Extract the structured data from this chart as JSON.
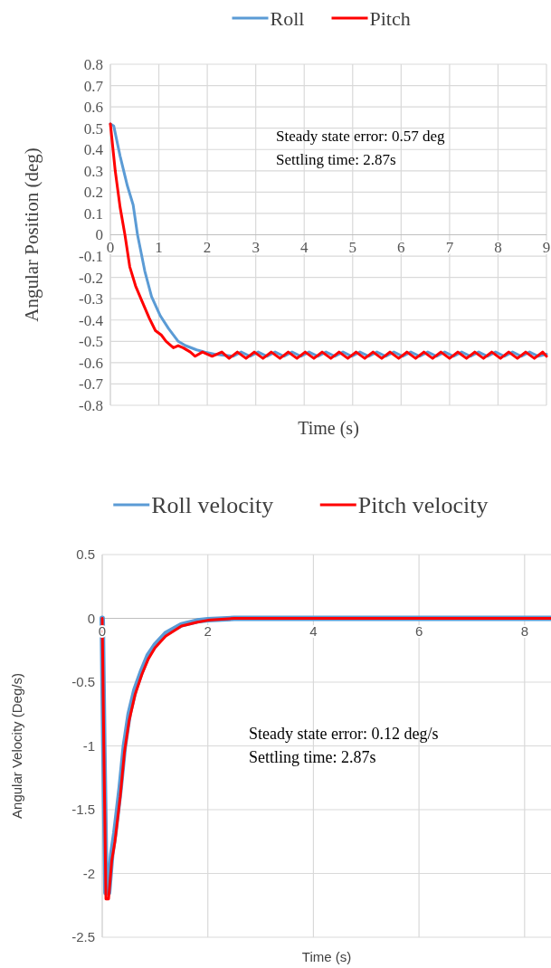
{
  "chart_data": [
    {
      "type": "line",
      "xlabel": "Time (s)",
      "ylabel": "Angular Position (deg)",
      "xlim": [
        0,
        9
      ],
      "ylim": [
        -0.8,
        0.8
      ],
      "xticks": [
        0,
        1,
        2,
        3,
        4,
        5,
        6,
        7,
        8,
        9
      ],
      "yticks": [
        {
          "value": -0.8,
          "label": "-0.8"
        },
        {
          "value": -0.7,
          "label": "-0.7"
        },
        {
          "value": -0.6,
          "label": "-0.6"
        },
        {
          "value": -0.5,
          "label": "-0.5"
        },
        {
          "value": -0.4,
          "label": "-0.4"
        },
        {
          "value": -0.3,
          "label": "-0.3"
        },
        {
          "value": -0.2,
          "label": "-0.2"
        },
        {
          "value": -0.1,
          "label": "-0.1"
        },
        0,
        {
          "value": 0.1,
          "label": "0.1"
        },
        {
          "value": 0.2,
          "label": "0.2"
        },
        {
          "value": 0.3,
          "label": "0.3"
        },
        {
          "value": 0.4,
          "label": "0.4"
        },
        {
          "value": 0.5,
          "label": "0.5"
        },
        {
          "value": 0.6,
          "label": "0.6"
        },
        {
          "value": 0.7,
          "label": "0.7"
        },
        {
          "value": 0.8,
          "label": "0.8"
        }
      ],
      "grid": true,
      "legend": "top",
      "annotations": [
        "Steady state error: 0.57 deg",
        "Settling time: 2.87s"
      ],
      "series": [
        {
          "name": "Roll",
          "color": "#5b9bd5",
          "x": [
            0,
            0.07,
            0.2,
            0.35,
            0.47,
            0.56,
            0.71,
            0.85,
            1.03,
            1.2,
            1.4,
            1.55,
            1.78,
            1.95,
            2.15,
            2.53,
            2.7,
            2.88,
            3.05,
            3.23,
            3.4,
            3.58,
            3.75,
            3.93,
            4.1,
            4.28,
            4.45,
            4.63,
            4.8,
            4.98,
            5.15,
            5.33,
            5.5,
            5.68,
            5.85,
            6.03,
            6.2,
            6.38,
            6.55,
            6.73,
            6.9,
            7.08,
            7.25,
            7.43,
            7.6,
            7.78,
            7.95,
            8.13,
            8.3,
            8.48,
            8.65,
            8.83,
            9
          ],
          "values": [
            0.52,
            0.51,
            0.37,
            0.23,
            0.14,
            0,
            -0.17,
            -0.29,
            -0.38,
            -0.44,
            -0.5,
            -0.52,
            -0.54,
            -0.55,
            -0.56,
            -0.57,
            -0.55,
            -0.57,
            -0.55,
            -0.57,
            -0.55,
            -0.57,
            -0.55,
            -0.57,
            -0.55,
            -0.57,
            -0.55,
            -0.57,
            -0.55,
            -0.57,
            -0.55,
            -0.57,
            -0.55,
            -0.57,
            -0.55,
            -0.57,
            -0.55,
            -0.57,
            -0.55,
            -0.57,
            -0.55,
            -0.57,
            -0.55,
            -0.57,
            -0.55,
            -0.57,
            -0.55,
            -0.57,
            -0.55,
            -0.57,
            -0.55,
            -0.57,
            -0.56
          ]
        },
        {
          "name": "Pitch",
          "color": "#ff0000",
          "x": [
            0,
            0.1,
            0.2,
            0.3,
            0.4,
            0.52,
            0.65,
            0.8,
            0.93,
            1.05,
            1.15,
            1.3,
            1.4,
            1.5,
            1.65,
            1.75,
            1.9,
            2.1,
            2.3,
            2.45,
            2.62,
            2.8,
            2.97,
            3.15,
            3.32,
            3.5,
            3.67,
            3.85,
            4.02,
            4.2,
            4.37,
            4.55,
            4.72,
            4.9,
            5.07,
            5.25,
            5.42,
            5.6,
            5.77,
            5.95,
            6.12,
            6.3,
            6.47,
            6.65,
            6.82,
            7,
            7.17,
            7.35,
            7.52,
            7.7,
            7.87,
            8.05,
            8.22,
            8.4,
            8.57,
            8.75,
            8.92,
            9
          ],
          "values": [
            0.52,
            0.3,
            0.13,
            0,
            -0.15,
            -0.24,
            -0.31,
            -0.39,
            -0.45,
            -0.47,
            -0.5,
            -0.53,
            -0.52,
            -0.53,
            -0.55,
            -0.57,
            -0.55,
            -0.57,
            -0.55,
            -0.58,
            -0.55,
            -0.58,
            -0.55,
            -0.58,
            -0.55,
            -0.58,
            -0.55,
            -0.58,
            -0.55,
            -0.58,
            -0.55,
            -0.58,
            -0.55,
            -0.58,
            -0.55,
            -0.58,
            -0.55,
            -0.58,
            -0.55,
            -0.58,
            -0.55,
            -0.58,
            -0.55,
            -0.58,
            -0.55,
            -0.58,
            -0.55,
            -0.58,
            -0.55,
            -0.58,
            -0.55,
            -0.58,
            -0.55,
            -0.58,
            -0.55,
            -0.58,
            -0.55,
            -0.57
          ]
        }
      ]
    },
    {
      "type": "line",
      "xlabel": "Time (s)",
      "ylabel": "Angular Velocity (Deg/s)",
      "xlim": [
        0,
        8.5
      ],
      "ylim": [
        -2.5,
        0.5
      ],
      "xticks": [
        0,
        2,
        4,
        6,
        8
      ],
      "yticks": [
        {
          "value": -2.5,
          "label": "-2.5"
        },
        -2,
        {
          "value": -1.5,
          "label": "-1.5"
        },
        -1,
        {
          "value": -0.5,
          "label": "-0.5"
        },
        0,
        0.5
      ],
      "grid": true,
      "legend": "top",
      "annotations": [
        "Steady state error: 0.12 deg/s",
        "Settling time: 2.87s"
      ],
      "series": [
        {
          "name": "Roll velocity",
          "color": "#5b9bd5",
          "x": [
            0,
            0.03,
            0.07,
            0.12,
            0.18,
            0.24,
            0.34,
            0.42,
            0.51,
            0.62,
            0.75,
            0.87,
            1,
            1.2,
            1.5,
            1.8,
            2,
            2.5,
            3,
            4,
            5,
            6,
            7,
            8,
            8.5
          ],
          "values": [
            0,
            -1,
            -2.15,
            -2.15,
            -1.85,
            -1.68,
            -1.33,
            -1,
            -0.75,
            -0.56,
            -0.41,
            -0.29,
            -0.21,
            -0.12,
            -0.05,
            -0.02,
            -0.01,
            0,
            0,
            0,
            0,
            0,
            0,
            0,
            0
          ]
        },
        {
          "name": "Pitch velocity",
          "color": "#ff0000",
          "x": [
            0,
            0.03,
            0.07,
            0.12,
            0.18,
            0.24,
            0.34,
            0.42,
            0.51,
            0.62,
            0.75,
            0.87,
            1,
            1.2,
            1.5,
            1.8,
            2,
            2.5,
            3,
            4,
            5,
            6,
            7,
            8,
            8.5
          ],
          "values": [
            0,
            -1,
            -2.2,
            -2.2,
            -1.9,
            -1.75,
            -1.4,
            -1.05,
            -0.8,
            -0.6,
            -0.44,
            -0.32,
            -0.23,
            -0.14,
            -0.06,
            -0.03,
            -0.015,
            0,
            0,
            0,
            0,
            0,
            0,
            0,
            0
          ]
        }
      ]
    }
  ]
}
